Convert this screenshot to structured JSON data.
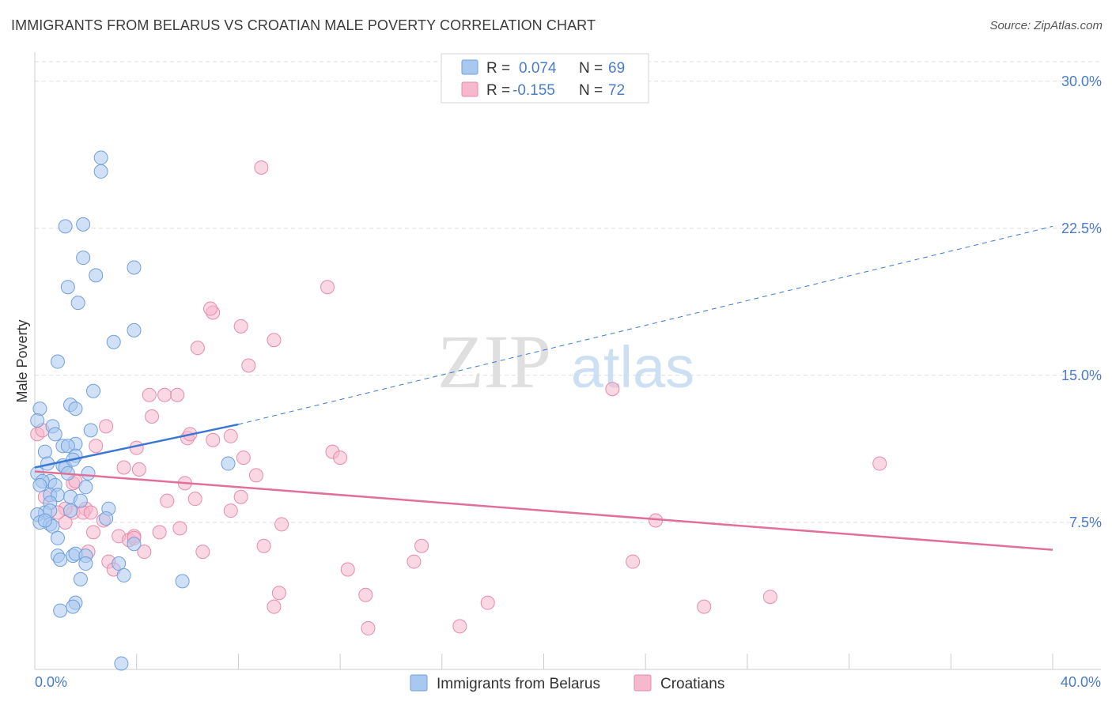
{
  "title": "IMMIGRANTS FROM BELARUS VS CROATIAN MALE POVERTY CORRELATION CHART",
  "source": "Source: ZipAtlas.com",
  "watermark": {
    "zip": "ZIP",
    "atlas": "atlas"
  },
  "colors": {
    "blue_fill": "#a9c8f0",
    "blue_stroke": "#6f9fdc",
    "blue_line": "#3a78d4",
    "pink_fill": "#f5b8cc",
    "pink_stroke": "#e98aaa",
    "pink_line": "#e07099",
    "axis_label": "#4a7cc9",
    "grid": "#dddddd"
  },
  "legend": {
    "r_label": "R =",
    "n_label": "N =",
    "rows": [
      {
        "series": "blue",
        "r": "0.074",
        "n": "69"
      },
      {
        "series": "pink",
        "r": "-0.155",
        "n": "72"
      }
    ]
  },
  "chart_data": {
    "type": "scatter",
    "title": "IMMIGRANTS FROM BELARUS VS CROATIAN MALE POVERTY CORRELATION CHART",
    "xlabel": "",
    "ylabel": "Male Poverty",
    "xlim": [
      0,
      40
    ],
    "ylim": [
      0,
      31
    ],
    "x_tick_labels": [
      "0.0%",
      "40.0%"
    ],
    "y_ticks": [
      7.5,
      15.0,
      22.5,
      30.0
    ],
    "y_tick_labels": [
      "7.5%",
      "15.0%",
      "22.5%",
      "30.0%"
    ],
    "grid": true,
    "series": [
      {
        "name": "Immigrants from Belarus",
        "color": "blue",
        "r": 0.074,
        "n": 69,
        "trend": {
          "x": [
            0,
            8
          ],
          "y": [
            10.3,
            12.5
          ],
          "dashed_extension_to": [
            40,
            22.6
          ]
        },
        "points": [
          [
            2.6,
            26.1
          ],
          [
            2.6,
            25.4
          ],
          [
            1.2,
            22.6
          ],
          [
            1.9,
            22.7
          ],
          [
            1.9,
            21.0
          ],
          [
            3.9,
            20.5
          ],
          [
            2.4,
            20.1
          ],
          [
            1.3,
            19.5
          ],
          [
            1.7,
            18.7
          ],
          [
            3.9,
            17.3
          ],
          [
            3.1,
            16.7
          ],
          [
            0.9,
            15.7
          ],
          [
            2.3,
            14.2
          ],
          [
            0.2,
            13.3
          ],
          [
            1.4,
            13.5
          ],
          [
            1.6,
            13.3
          ],
          [
            0.1,
            12.7
          ],
          [
            0.7,
            12.4
          ],
          [
            0.8,
            12.0
          ],
          [
            2.2,
            12.2
          ],
          [
            1.1,
            11.4
          ],
          [
            1.6,
            11.5
          ],
          [
            1.3,
            11.4
          ],
          [
            0.4,
            11.1
          ],
          [
            1.6,
            10.9
          ],
          [
            0.5,
            10.5
          ],
          [
            1.1,
            10.4
          ],
          [
            1.2,
            10.3
          ],
          [
            1.5,
            10.7
          ],
          [
            2.1,
            10.0
          ],
          [
            1.3,
            10.0
          ],
          [
            7.6,
            10.5
          ],
          [
            0.1,
            10.0
          ],
          [
            0.6,
            9.6
          ],
          [
            0.3,
            9.6
          ],
          [
            0.8,
            9.4
          ],
          [
            2.0,
            9.3
          ],
          [
            0.2,
            9.4
          ],
          [
            0.6,
            8.9
          ],
          [
            0.9,
            8.9
          ],
          [
            1.4,
            8.8
          ],
          [
            1.8,
            8.6
          ],
          [
            0.6,
            8.5
          ],
          [
            0.4,
            8.0
          ],
          [
            0.6,
            8.1
          ],
          [
            1.4,
            8.1
          ],
          [
            2.9,
            8.2
          ],
          [
            0.1,
            7.9
          ],
          [
            0.2,
            7.5
          ],
          [
            0.6,
            7.4
          ],
          [
            0.7,
            7.3
          ],
          [
            0.4,
            7.6
          ],
          [
            2.8,
            7.7
          ],
          [
            0.9,
            6.7
          ],
          [
            3.9,
            6.4
          ],
          [
            0.9,
            5.8
          ],
          [
            1.0,
            5.6
          ],
          [
            1.5,
            5.8
          ],
          [
            1.6,
            5.9
          ],
          [
            2.0,
            5.8
          ],
          [
            2.0,
            5.4
          ],
          [
            3.3,
            5.4
          ],
          [
            3.5,
            4.8
          ],
          [
            5.8,
            4.5
          ],
          [
            1.8,
            4.6
          ],
          [
            1.6,
            3.4
          ],
          [
            1.5,
            3.2
          ],
          [
            1.0,
            3.0
          ],
          [
            3.4,
            0.3
          ]
        ]
      },
      {
        "name": "Croatians",
        "color": "pink",
        "r": -0.155,
        "n": 72,
        "trend": {
          "x": [
            0,
            40
          ],
          "y": [
            10.1,
            6.1
          ]
        },
        "points": [
          [
            8.9,
            25.6
          ],
          [
            11.5,
            19.5
          ],
          [
            7.0,
            18.2
          ],
          [
            6.9,
            18.4
          ],
          [
            8.1,
            17.5
          ],
          [
            9.4,
            16.8
          ],
          [
            6.4,
            16.4
          ],
          [
            8.4,
            15.5
          ],
          [
            22.7,
            14.3
          ],
          [
            4.5,
            14.0
          ],
          [
            5.1,
            14.0
          ],
          [
            5.6,
            14.0
          ],
          [
            4.6,
            12.9
          ],
          [
            2.8,
            12.4
          ],
          [
            0.1,
            12.0
          ],
          [
            0.3,
            12.2
          ],
          [
            6.0,
            11.8
          ],
          [
            7.7,
            11.9
          ],
          [
            7.0,
            11.7
          ],
          [
            6.1,
            12.0
          ],
          [
            2.4,
            11.4
          ],
          [
            4.0,
            11.3
          ],
          [
            11.7,
            11.1
          ],
          [
            12.0,
            10.8
          ],
          [
            8.2,
            10.8
          ],
          [
            33.2,
            10.5
          ],
          [
            3.5,
            10.3
          ],
          [
            4.1,
            10.2
          ],
          [
            8.7,
            9.9
          ],
          [
            1.5,
            9.5
          ],
          [
            5.9,
            9.5
          ],
          [
            0.4,
            8.8
          ],
          [
            8.1,
            8.8
          ],
          [
            5.2,
            8.6
          ],
          [
            1.5,
            8.0
          ],
          [
            2.0,
            8.2
          ],
          [
            1.2,
            8.2
          ],
          [
            1.9,
            8.0
          ],
          [
            2.2,
            8.0
          ],
          [
            6.3,
            8.7
          ],
          [
            7.7,
            8.1
          ],
          [
            1.2,
            7.5
          ],
          [
            0.9,
            8.0
          ],
          [
            2.7,
            7.6
          ],
          [
            24.4,
            7.6
          ],
          [
            9.7,
            7.4
          ],
          [
            5.7,
            7.2
          ],
          [
            4.9,
            7.0
          ],
          [
            2.3,
            7.0
          ],
          [
            3.3,
            6.8
          ],
          [
            3.7,
            6.6
          ],
          [
            3.9,
            6.8
          ],
          [
            9.0,
            6.3
          ],
          [
            15.2,
            6.3
          ],
          [
            4.3,
            6.0
          ],
          [
            6.6,
            6.0
          ],
          [
            2.1,
            6.0
          ],
          [
            2.9,
            5.5
          ],
          [
            14.9,
            5.5
          ],
          [
            23.5,
            5.5
          ],
          [
            3.1,
            5.1
          ],
          [
            12.3,
            5.1
          ],
          [
            9.6,
            3.9
          ],
          [
            13.0,
            3.8
          ],
          [
            28.9,
            3.7
          ],
          [
            17.8,
            3.4
          ],
          [
            9.4,
            3.2
          ],
          [
            26.3,
            3.2
          ],
          [
            3.9,
            6.7
          ],
          [
            1.6,
            9.6
          ],
          [
            13.1,
            2.1
          ],
          [
            16.7,
            2.2
          ]
        ]
      }
    ]
  }
}
